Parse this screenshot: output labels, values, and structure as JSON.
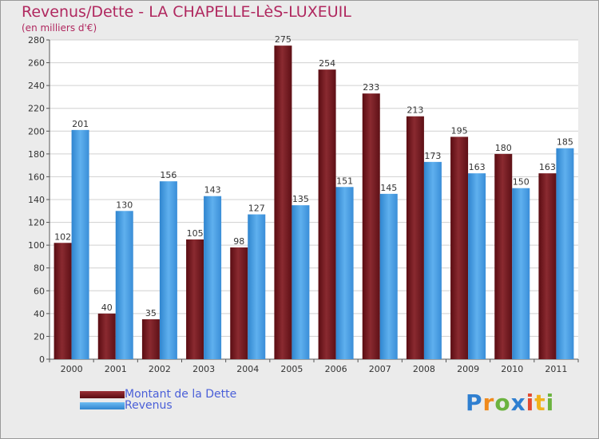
{
  "chart_data": {
    "type": "bar",
    "title": "Revenus/Dette - LA CHAPELLE-LèS-LUXEUIL",
    "subtitle": "(en milliers d'€)",
    "categories": [
      "2000",
      "2001",
      "2002",
      "2003",
      "2004",
      "2005",
      "2006",
      "2007",
      "2008",
      "2009",
      "2010",
      "2011"
    ],
    "series": [
      {
        "name": "Montant de la Dette",
        "color": "#7a1a1f",
        "values": [
          102,
          40,
          35,
          105,
          98,
          275,
          254,
          233,
          213,
          195,
          180,
          163
        ]
      },
      {
        "name": "Revenus",
        "color": "#4ea3e6",
        "values": [
          201,
          130,
          156,
          143,
          127,
          135,
          151,
          145,
          173,
          163,
          150,
          185
        ]
      }
    ],
    "ylim": [
      0,
      280
    ],
    "yticks": [
      0,
      20,
      40,
      60,
      80,
      100,
      120,
      140,
      160,
      180,
      200,
      220,
      240,
      260,
      280
    ],
    "grid": true,
    "legend_position": "bottom-left"
  },
  "logo": {
    "letters": [
      "P",
      "r",
      "o",
      "x",
      "i",
      "t",
      "i"
    ],
    "colors": [
      "#2f7fd0",
      "#f08a1c",
      "#6cb33f",
      "#2f7fd0",
      "#e34a2f",
      "#f0b21c",
      "#6cb33f"
    ]
  }
}
